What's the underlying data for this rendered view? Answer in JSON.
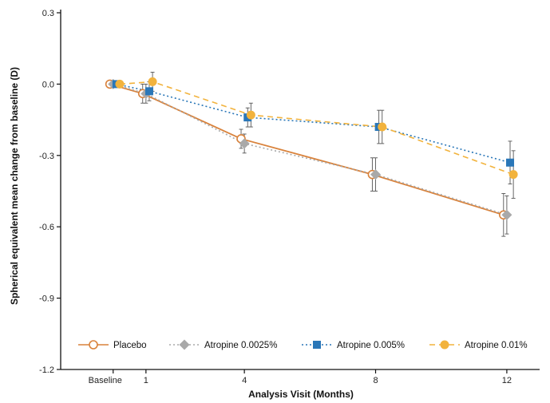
{
  "chart_data": {
    "type": "line",
    "xlabel": "Analysis Visit (Months)",
    "ylabel": "Spherical equivalent mean change from baseline (D)",
    "categories": [
      "Baseline",
      "1",
      "4",
      "8",
      "12"
    ],
    "x_values": [
      0,
      1,
      4,
      8,
      12
    ],
    "xlim": [
      -1.6,
      13.0
    ],
    "ylim": [
      -1.2,
      0.3
    ],
    "yticks": [
      0.3,
      0.0,
      -0.3,
      -0.6,
      -0.9,
      -1.2
    ],
    "ytick_labels": [
      "0.3",
      "0.0",
      "-0.3",
      "-0.6",
      "-0.9",
      "-1.2"
    ],
    "grid": false,
    "legend_position": "bottom",
    "series": [
      {
        "name": "Placebo",
        "color": "#d9823b",
        "line_style": "solid",
        "marker": "open-circle",
        "x": [
          -0.1,
          0.9,
          3.9,
          7.9,
          11.9
        ],
        "values": [
          0.0,
          -0.04,
          -0.23,
          -0.38,
          -0.55
        ],
        "error": [
          0.0,
          0.04,
          0.04,
          0.07,
          0.09
        ]
      },
      {
        "name": "Atropine 0.0025%",
        "color": "#a9a9a9",
        "line_style": "dotted",
        "marker": "diamond",
        "x": [
          0.0,
          1.0,
          4.0,
          8.0,
          12.0
        ],
        "values": [
          0.0,
          -0.04,
          -0.25,
          -0.38,
          -0.55
        ],
        "error": [
          0.0,
          0.04,
          0.04,
          0.07,
          0.08
        ]
      },
      {
        "name": "Atropine 0.005%",
        "color": "#2a77b8",
        "line_style": "dotted",
        "marker": "square",
        "x": [
          0.1,
          1.1,
          4.1,
          8.1,
          12.1
        ],
        "values": [
          0.0,
          -0.03,
          -0.14,
          -0.18,
          -0.33
        ],
        "error": [
          0.0,
          0.04,
          0.04,
          0.07,
          0.09
        ]
      },
      {
        "name": "Atropine 0.01%",
        "color": "#f2b33d",
        "line_style": "dashed",
        "marker": "filled-circle",
        "x": [
          0.2,
          1.2,
          4.2,
          8.2,
          12.2
        ],
        "values": [
          0.0,
          0.01,
          -0.13,
          -0.18,
          -0.38
        ],
        "error": [
          0.0,
          0.04,
          0.05,
          0.07,
          0.1
        ]
      }
    ]
  }
}
